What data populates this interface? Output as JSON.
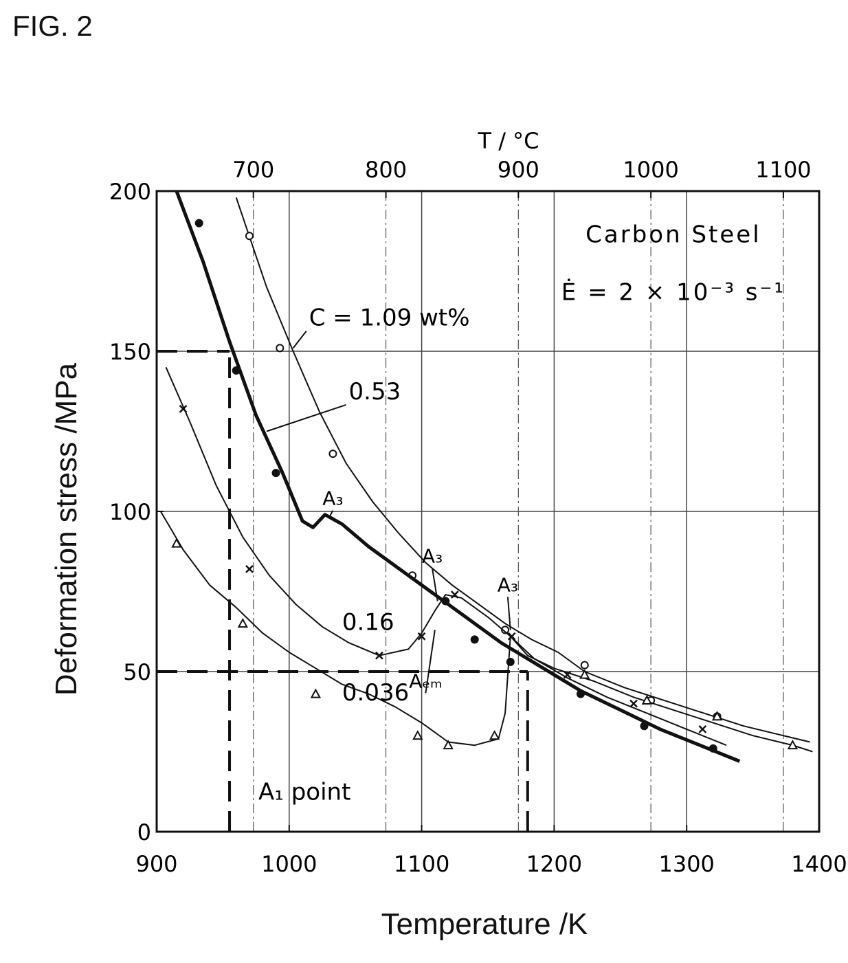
{
  "figure_label": "FIG. 2",
  "chart_data": {
    "type": "line",
    "xlabel": "Temperature /K",
    "ylabel": "Deformation stress /MPa",
    "top_axis_label": "T / °C",
    "xlim": [
      900,
      1400
    ],
    "ylim": [
      0,
      200
    ],
    "x_ticks": [
      "900",
      "1000",
      "1100",
      "1200",
      "1300",
      "1400"
    ],
    "y_ticks": [
      "0",
      "50",
      "100",
      "150",
      "200"
    ],
    "top_ticks": [
      {
        "c": 700,
        "label": "700"
      },
      {
        "c": 800,
        "label": "800"
      },
      {
        "c": 900,
        "label": "900"
      },
      {
        "c": 1000,
        "label": "1000"
      },
      {
        "c": 1100,
        "label": "1100"
      }
    ],
    "grid": true,
    "title_text": "Carbon Steel",
    "strain_rate_text": "Ė = 2 × 10⁻³ s⁻¹",
    "series": [
      {
        "name": "C = 1.09 wt%",
        "label_text": "C = 1.09 wt%",
        "marker": "circle",
        "stroke": 2,
        "x": [
          960,
          983,
          1003,
          1023,
          1043,
          1063,
          1083,
          1103,
          1123,
          1143,
          1163,
          1183,
          1203,
          1223,
          1253,
          1283,
          1313,
          1343,
          1373,
          1393
        ],
        "y": [
          198,
          170,
          150,
          131,
          115,
          103,
          93,
          84,
          77,
          71,
          65,
          60,
          56,
          50,
          45,
          41,
          37,
          33,
          30,
          28
        ],
        "points_x": [
          970,
          993,
          1033,
          1093,
          1163,
          1223,
          1273,
          1323
        ],
        "points_y": [
          186,
          151,
          118,
          80,
          63,
          52,
          41,
          36
        ]
      },
      {
        "name": "0.53",
        "label_text": "0.53",
        "marker": "dot",
        "stroke": 5,
        "x": [
          915,
          935,
          955,
          975,
          995,
          1010,
          1018,
          1027,
          1040,
          1060,
          1080,
          1100,
          1120,
          1140,
          1160,
          1180,
          1200,
          1220,
          1250,
          1280,
          1310,
          1340
        ],
        "y": [
          200,
          178,
          153,
          130,
          112,
          97,
          95,
          99,
          96,
          89,
          83,
          77,
          71,
          65,
          59,
          54,
          49,
          44,
          38,
          32,
          27,
          22
        ],
        "points_x": [
          932,
          960,
          990,
          1118,
          1140,
          1167,
          1220,
          1268,
          1320
        ],
        "points_y": [
          190,
          144,
          112,
          72,
          60,
          53,
          43,
          33,
          26
        ]
      },
      {
        "name": "0.16",
        "label_text": "0.16",
        "marker": "cross",
        "stroke": 2,
        "x": [
          907,
          925,
          945,
          965,
          985,
          1005,
          1025,
          1045,
          1068,
          1090,
          1100,
          1110,
          1118,
          1130,
          1150,
          1167,
          1185,
          1210,
          1240,
          1270,
          1300,
          1330
        ],
        "y": [
          145,
          128,
          108,
          92,
          80,
          71,
          64,
          59,
          55,
          57,
          62,
          69,
          74,
          73,
          67,
          61,
          54,
          48,
          42,
          37,
          32,
          27
        ],
        "points_x": [
          920,
          970,
          1068,
          1100,
          1125,
          1168,
          1210,
          1260,
          1312
        ],
        "points_y": [
          132,
          82,
          55,
          61,
          74,
          61,
          49,
          40,
          32
        ]
      },
      {
        "name": "0.036",
        "label_text": "0.036",
        "marker": "triangle",
        "stroke": 2,
        "x": [
          903,
          920,
          940,
          960,
          980,
          1000,
          1020,
          1040,
          1060,
          1080,
          1100,
          1120,
          1140,
          1158,
          1163,
          1167,
          1180,
          1200,
          1230,
          1260,
          1290,
          1320,
          1350,
          1380,
          1395
        ],
        "y": [
          100,
          88,
          77,
          70,
          62,
          56,
          51,
          46,
          43,
          39,
          34,
          28,
          27,
          29,
          37,
          61,
          55,
          51,
          47,
          42,
          38,
          34,
          30,
          27,
          25
        ],
        "points_x": [
          915,
          965,
          1020,
          1097,
          1120,
          1155,
          1223,
          1270,
          1323,
          1380
        ],
        "points_y": [
          90,
          65,
          43,
          30,
          27,
          30,
          49,
          41,
          36,
          27
        ]
      }
    ],
    "reference_lines": [
      {
        "orient": "h",
        "value": 150,
        "from": 900,
        "to": 955
      },
      {
        "orient": "h",
        "value": 50,
        "from": 900,
        "to": 1180
      },
      {
        "orient": "v",
        "value": 955,
        "from": 0,
        "to": 150,
        "label": "A₁ point"
      },
      {
        "orient": "v",
        "value": 1180,
        "from": 0,
        "to": 50
      }
    ],
    "annotations": [
      {
        "text": "A₃",
        "x": 1033,
        "y": 102,
        "arrow_to": [
          1030,
          98
        ]
      },
      {
        "text": "A₃",
        "x": 1108,
        "y": 84,
        "arrow_to": [
          1112,
          72
        ]
      },
      {
        "text": "A₃",
        "x": 1165,
        "y": 75,
        "arrow_to": [
          1167,
          63
        ]
      },
      {
        "text": "Aₑₘ",
        "x": 1103,
        "y": 45,
        "arrow_to": [
          1110,
          63
        ]
      }
    ]
  }
}
